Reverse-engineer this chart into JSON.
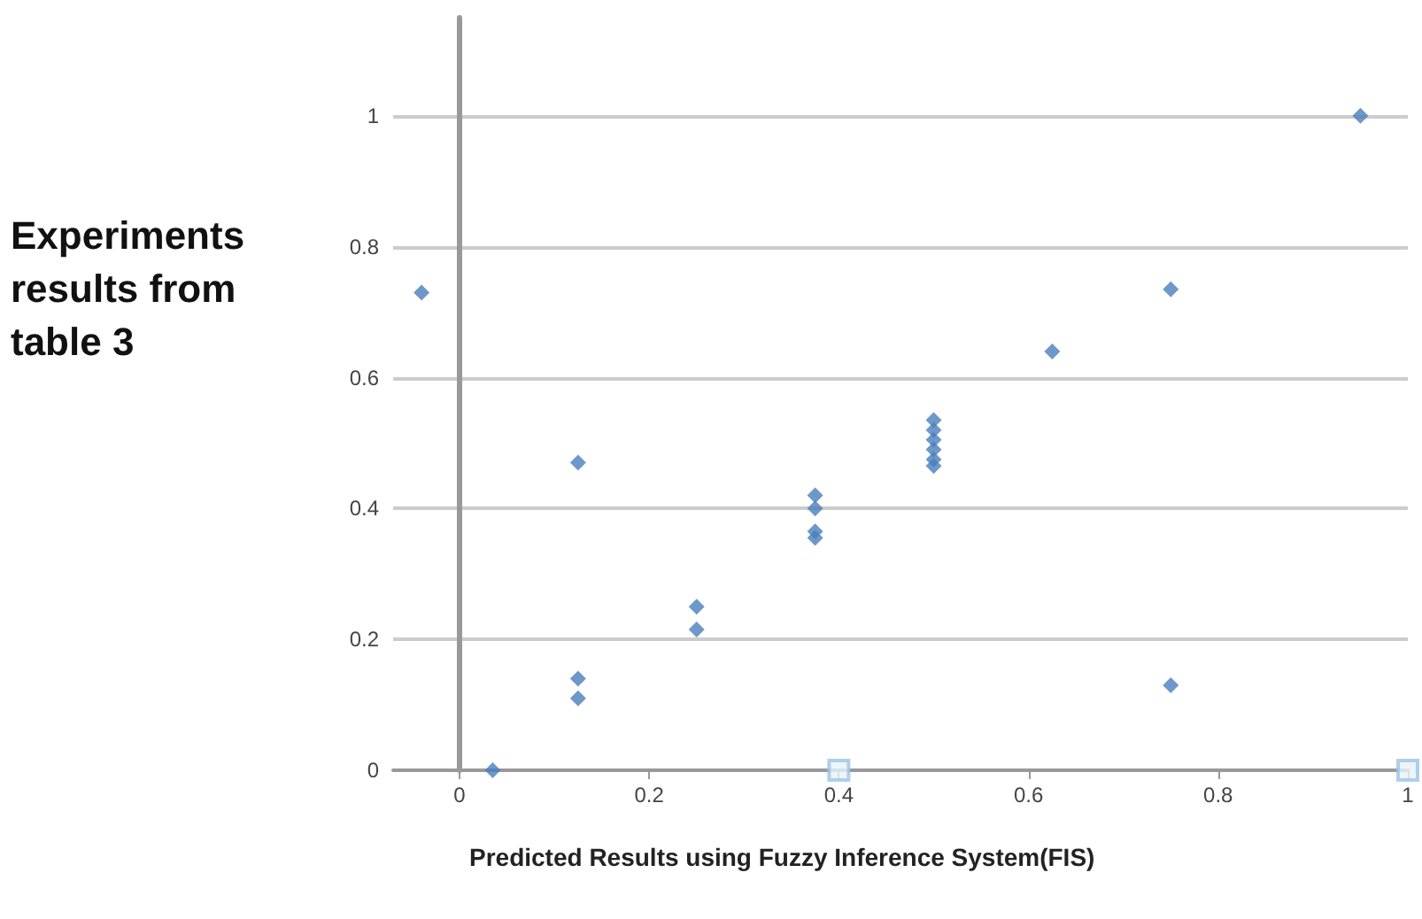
{
  "chart_data": {
    "type": "scatter",
    "xlabel": "Predicted Results using Fuzzy Inference System(FIS)",
    "ylabel": "Experiments results from table 3",
    "series": [
      {
        "color": "#4a7ebb",
        "marker": "diamond",
        "x": [
          -0.04,
          0.035,
          0.125,
          0.125,
          0.125,
          0.25,
          0.25,
          0.375,
          0.375,
          0.375,
          0.375,
          0.5,
          0.5,
          0.5,
          0.5,
          0.5,
          0.5,
          0.625,
          0.75,
          0.75,
          0.95
        ],
        "values": [
          0.73,
          0,
          0.47,
          0.14,
          0.11,
          0.25,
          0.215,
          0.42,
          0.4,
          0.365,
          0.355,
          0.535,
          0.52,
          0.505,
          0.49,
          0.475,
          0.465,
          0.64,
          0.735,
          0.13,
          1
        ]
      },
      {
        "color": "#9dc3e6",
        "marker": "square",
        "x": [
          0.4,
          1
        ],
        "values": [
          0,
          0
        ]
      }
    ],
    "xlim": [
      -0.07,
      1
    ],
    "xticks": [
      0,
      0.2,
      0.4,
      0.6,
      0.8,
      1
    ],
    "ylim": [
      0,
      1.15
    ],
    "yticks": [
      0,
      0.2,
      0.4,
      0.6,
      0.8,
      1
    ],
    "grid": "y"
  }
}
